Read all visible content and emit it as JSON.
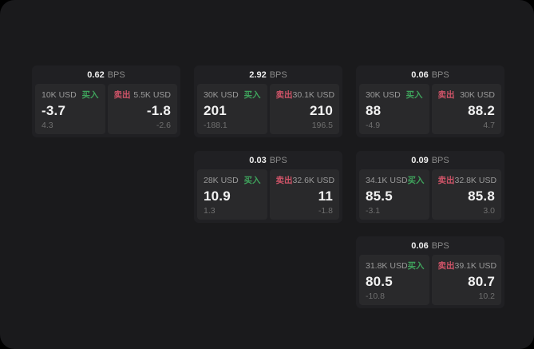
{
  "theme": {
    "outer_bg": "#000000",
    "window_bg": "#1a1a1c",
    "card_bg": "#202023",
    "panel_bg": "#29292b",
    "buy_color": "#3fa35c",
    "sell_color": "#cf5468",
    "value_color": "#f2f2f2",
    "muted_color": "#9a9a9a",
    "dim_color": "#6f6f6f"
  },
  "labels": {
    "buy": "买入",
    "sell": "卖出",
    "bps_unit": "BPS"
  },
  "cards": [
    {
      "row": 1,
      "col": 1,
      "bps": "0.62",
      "buy": {
        "amount": "10K USD",
        "value": "-3.7",
        "delta": "4.3"
      },
      "sell": {
        "amount": "5.5K USD",
        "value": "-1.8",
        "delta": "-2.6"
      }
    },
    {
      "row": 1,
      "col": 2,
      "bps": "2.92",
      "buy": {
        "amount": "30K USD",
        "value": "201",
        "delta": "-188.1"
      },
      "sell": {
        "amount": "30.1K USD",
        "value": "210",
        "delta": "196.5"
      }
    },
    {
      "row": 1,
      "col": 3,
      "bps": "0.06",
      "buy": {
        "amount": "30K USD",
        "value": "88",
        "delta": "-4.9"
      },
      "sell": {
        "amount": "30K USD",
        "value": "88.2",
        "delta": "4.7"
      }
    },
    {
      "row": 2,
      "col": 2,
      "bps": "0.03",
      "buy": {
        "amount": "28K USD",
        "value": "10.9",
        "delta": "1.3"
      },
      "sell": {
        "amount": "32.6K USD",
        "value": "11",
        "delta": "-1.8"
      }
    },
    {
      "row": 2,
      "col": 3,
      "bps": "0.09",
      "buy": {
        "amount": "34.1K USD",
        "value": "85.5",
        "delta": "-3.1"
      },
      "sell": {
        "amount": "32.8K USD",
        "value": "85.8",
        "delta": "3.0"
      }
    },
    {
      "row": 3,
      "col": 3,
      "bps": "0.06",
      "buy": {
        "amount": "31.8K USD",
        "value": "80.5",
        "delta": "-10.8"
      },
      "sell": {
        "amount": "39.1K USD",
        "value": "80.7",
        "delta": "10.2"
      }
    }
  ]
}
